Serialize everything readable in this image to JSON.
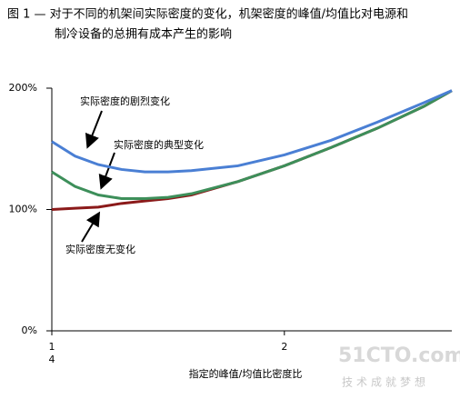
{
  "chart_data": {
    "type": "line",
    "title_lines": [
      "图 1 — 对于不同的机架间实际密度的变化，机架密度的峰值/均值比对电源和",
      "制冷设备的总拥有成本产生的影响"
    ],
    "x_label": "指定的峰值/均值比密度比",
    "x": [
      1.0,
      1.1,
      1.2,
      1.3,
      1.4,
      1.5,
      1.6,
      1.8,
      2.0,
      2.2,
      2.4,
      2.6,
      2.72
    ],
    "series": [
      {
        "name": "实际密度无变化",
        "color": "#8b1a1a",
        "values": [
          100,
          101,
          102,
          105,
          107,
          109,
          112,
          123,
          136,
          151,
          167,
          185,
          198
        ]
      },
      {
        "name": "实际密度的典型变化",
        "color": "#3d8f5a",
        "values": [
          131,
          119,
          112,
          109,
          109,
          110,
          113,
          123,
          136,
          151,
          167,
          185,
          198
        ]
      },
      {
        "name": "实际密度的剧烈变化",
        "color": "#4a7fd4",
        "values": [
          156,
          144,
          137,
          133,
          131,
          131,
          132,
          136,
          145,
          157,
          172,
          188,
          198
        ]
      }
    ],
    "xlim": [
      1.0,
      2.72
    ],
    "xticks": [
      1,
      2
    ],
    "x_tick_sublabel": "4",
    "ylim": [
      0,
      200
    ],
    "yticks": [
      {
        "value": 0,
        "label": "0%"
      },
      {
        "value": 100,
        "label": "100%"
      },
      {
        "value": 200,
        "label": "200%"
      }
    ],
    "watermark": [
      "51CTO.com",
      "技术成就梦想"
    ]
  }
}
